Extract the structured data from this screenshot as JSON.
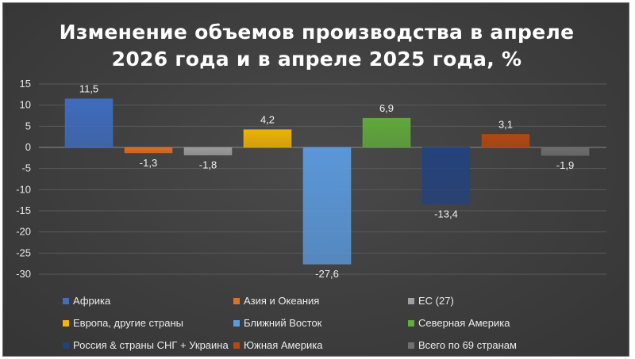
{
  "title": {
    "line1": "Изменение объемов производства в апреле",
    "line2": "2026 года и в апреле 2025 года, %"
  },
  "chart_data": {
    "type": "bar",
    "title": "Изменение объемов производства в апреле 2026 года и в апреле 2025 года, %",
    "xlabel": "",
    "ylabel": "",
    "ylim": [
      -30,
      15
    ],
    "yticks": [
      15,
      10,
      5,
      0,
      -5,
      -10,
      -15,
      -20,
      -25,
      -30
    ],
    "grid": true,
    "legend_position": "bottom",
    "series": [
      {
        "name": "Африка",
        "value": 11.5,
        "label": "11,5",
        "color": "#3f6ec4"
      },
      {
        "name": "Азия и Океания",
        "value": -1.3,
        "label": "-1,3",
        "color": "#e66f22"
      },
      {
        "name": "ЕС (27)",
        "value": -1.8,
        "label": "-1,8",
        "color": "#a0a0a0"
      },
      {
        "name": "Европа, другие страны",
        "value": 4.2,
        "label": "4,2",
        "color": "#f5b800"
      },
      {
        "name": "Ближний Восток",
        "value": -27.6,
        "label": "-27,6",
        "color": "#5b9be0"
      },
      {
        "name": "Северная Америка",
        "value": 6.9,
        "label": "6,9",
        "color": "#62ad3b"
      },
      {
        "name": "Россия & страны СНГ + Украина",
        "value": -13.4,
        "label": "-13,4",
        "color": "#22427f"
      },
      {
        "name": "Южная Америка",
        "value": 3.1,
        "label": "3,1",
        "color": "#b8480f"
      },
      {
        "name": "Всего по 69 странам",
        "value": -1.9,
        "label": "-1,9",
        "color": "#707070"
      }
    ]
  }
}
